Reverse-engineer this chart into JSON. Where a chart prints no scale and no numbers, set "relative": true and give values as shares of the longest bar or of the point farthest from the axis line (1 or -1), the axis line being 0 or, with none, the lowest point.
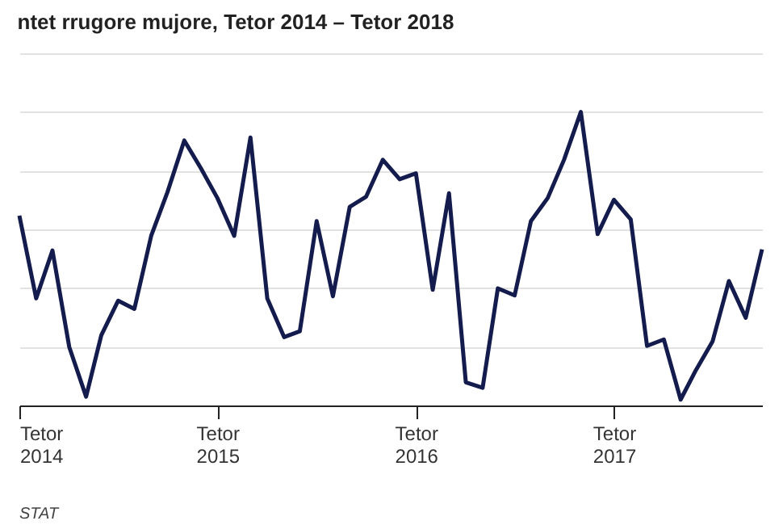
{
  "chart_data": {
    "type": "line",
    "title": "ntet rrugore mujore, Tetor 2014 – Tetor 2018",
    "relative": true,
    "grid": "y",
    "legend": false,
    "marker": "none",
    "line_style": "solid",
    "x": [
      "2014-10",
      "2014-11",
      "2014-12",
      "2015-01",
      "2015-02",
      "2015-03",
      "2015-04",
      "2015-05",
      "2015-06",
      "2015-07",
      "2015-08",
      "2015-09",
      "2015-10",
      "2015-11",
      "2015-12",
      "2016-01",
      "2016-02",
      "2016-03",
      "2016-04",
      "2016-05",
      "2016-06",
      "2016-07",
      "2016-08",
      "2016-09",
      "2016-10",
      "2016-11",
      "2016-12",
      "2017-01",
      "2017-02",
      "2017-03",
      "2017-04",
      "2017-05",
      "2017-06",
      "2017-07",
      "2017-08",
      "2017-09",
      "2017-10",
      "2017-11",
      "2017-12",
      "2018-01",
      "2018-02",
      "2018-03",
      "2018-04",
      "2018-05",
      "2018-06",
      "2018-07"
    ],
    "xlim": [
      "2014-10",
      "2018-07"
    ],
    "xticks": [
      {
        "value": "2014-10",
        "label": "Tetor\n2014"
      },
      {
        "value": "2015-10",
        "label": "Tetor\n2015"
      },
      {
        "value": "2016-10",
        "label": "Tetor\n2016"
      },
      {
        "value": "2017-10",
        "label": "Tetor\n2017"
      }
    ],
    "series": [
      {
        "color": "#141c4e",
        "values": [
          0.647,
          0.365,
          0.528,
          0.199,
          0.03,
          0.239,
          0.357,
          0.329,
          0.578,
          0.727,
          0.903,
          0.807,
          0.707,
          0.578,
          0.913,
          0.365,
          0.233,
          0.253,
          0.628,
          0.372,
          0.677,
          0.711,
          0.837,
          0.771,
          0.791,
          0.394,
          0.723,
          0.079,
          0.06,
          0.399,
          0.375,
          0.628,
          0.707,
          0.837,
          1,
          0.584,
          0.701,
          0.634,
          0.203,
          0.225,
          0.02,
          0.12,
          0.219,
          0.424,
          0.299,
          0.532
        ]
      }
    ],
    "annotations": [
      "STAT"
    ]
  }
}
